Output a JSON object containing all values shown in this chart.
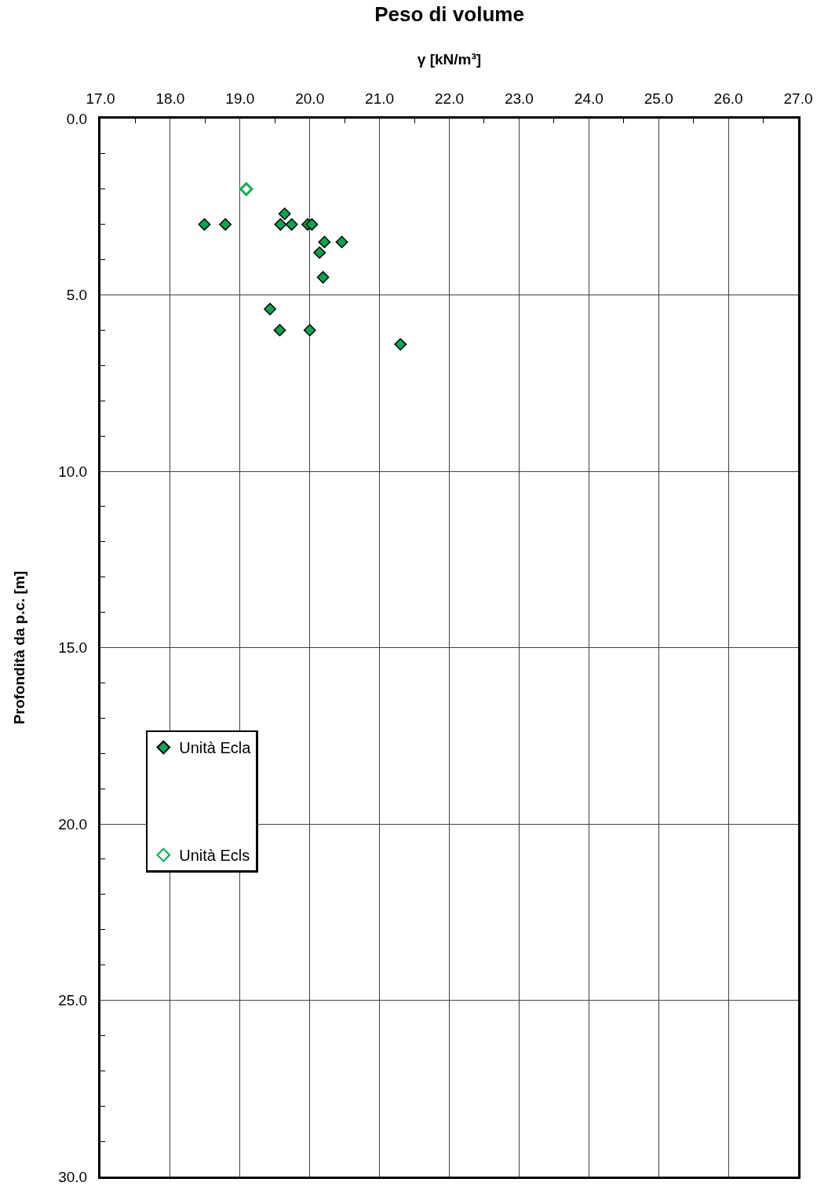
{
  "chart_data": {
    "type": "scatter",
    "title": "Peso di volume",
    "xlabel": "γ [kN/m³]",
    "ylabel": "Profondità da p.c. [m]",
    "series": [
      {
        "name": "Unità Ecla",
        "color": "#00a651",
        "marker": "diamond",
        "x": [
          18.49,
          18.79,
          19.64,
          19.58,
          19.74,
          19.97,
          20.03,
          20.21,
          20.46,
          20.14,
          20.19,
          19.43,
          19.57,
          20.0,
          21.3
        ],
        "values": [
          3.0,
          3.0,
          2.7,
          3.0,
          3.0,
          3.0,
          3.0,
          3.5,
          3.5,
          3.8,
          4.5,
          5.4,
          6.0,
          6.0,
          6.4
        ]
      },
      {
        "name": "Unità Ecls",
        "color": "#00b050",
        "marker": "diamond-open",
        "x": [
          19.09
        ],
        "values": [
          2.0
        ]
      }
    ],
    "xlim": [
      17,
      27
    ],
    "ylim": [
      30,
      0
    ],
    "xticks": [
      {
        "value": 17,
        "label": "17.0"
      },
      {
        "value": 17.5,
        "label": null
      },
      {
        "value": 18,
        "label": "18.0"
      },
      {
        "value": 18.5,
        "label": null
      },
      {
        "value": 19,
        "label": "19.0"
      },
      {
        "value": 19.5,
        "label": null
      },
      {
        "value": 20,
        "label": "20.0"
      },
      {
        "value": 20.5,
        "label": null
      },
      {
        "value": 21,
        "label": "21.0"
      },
      {
        "value": 21.5,
        "label": null
      },
      {
        "value": 22,
        "label": "22.0"
      },
      {
        "value": 22.5,
        "label": null
      },
      {
        "value": 23,
        "label": "23.0"
      },
      {
        "value": 23.5,
        "label": null
      },
      {
        "value": 24,
        "label": "24.0"
      },
      {
        "value": 24.5,
        "label": null
      },
      {
        "value": 25,
        "label": "25.0"
      },
      {
        "value": 25.5,
        "label": null
      },
      {
        "value": 26,
        "label": "26.0"
      },
      {
        "value": 26.5,
        "label": null
      },
      {
        "value": 27,
        "label": "27.0"
      }
    ],
    "yticks": [
      {
        "value": 0,
        "label": "0.0"
      },
      {
        "value": 1,
        "label": null
      },
      {
        "value": 2,
        "label": null
      },
      {
        "value": 3,
        "label": null
      },
      {
        "value": 4,
        "label": null
      },
      {
        "value": 5,
        "label": "5.0"
      },
      {
        "value": 6,
        "label": null
      },
      {
        "value": 7,
        "label": null
      },
      {
        "value": 8,
        "label": null
      },
      {
        "value": 9,
        "label": null
      },
      {
        "value": 10,
        "label": "10.0"
      },
      {
        "value": 11,
        "label": null
      },
      {
        "value": 12,
        "label": null
      },
      {
        "value": 13,
        "label": null
      },
      {
        "value": 14,
        "label": null
      },
      {
        "value": 15,
        "label": "15.0"
      },
      {
        "value": 16,
        "label": null
      },
      {
        "value": 17,
        "label": null
      },
      {
        "value": 18,
        "label": null
      },
      {
        "value": 19,
        "label": null
      },
      {
        "value": 20,
        "label": "20.0"
      },
      {
        "value": 21,
        "label": null
      },
      {
        "value": 22,
        "label": null
      },
      {
        "value": 23,
        "label": null
      },
      {
        "value": 24,
        "label": null
      },
      {
        "value": 25,
        "label": "25.0"
      },
      {
        "value": 26,
        "label": null
      },
      {
        "value": 27,
        "label": null
      },
      {
        "value": 28,
        "label": null
      },
      {
        "value": 29,
        "label": null
      },
      {
        "value": 30,
        "label": "30.0"
      }
    ],
    "grid": true,
    "legend": "left"
  }
}
